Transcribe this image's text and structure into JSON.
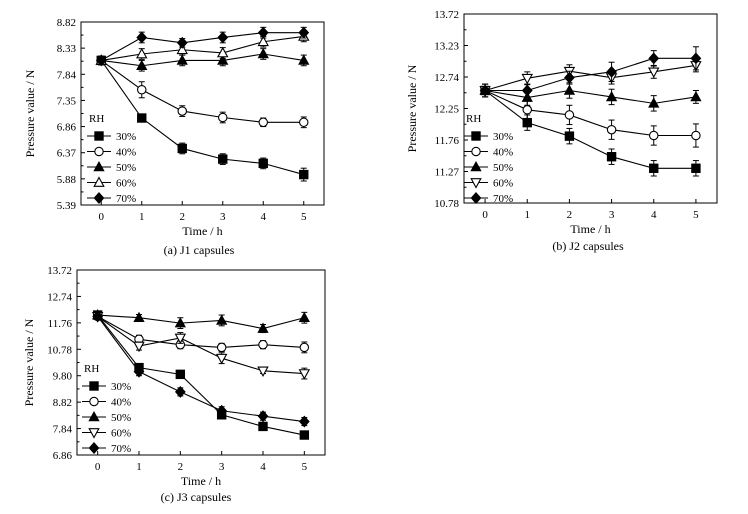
{
  "chart_data": [
    {
      "type": "line",
      "caption": "(a) J1 capsules",
      "xlabel": "Time / h",
      "ylabel": "Pressure value / N",
      "x": [
        0,
        1,
        2,
        3,
        4,
        5
      ],
      "xlim": [
        -0.5,
        5.5
      ],
      "ylim": [
        5.39,
        8.82
      ],
      "yticks": [
        "5.39",
        "5.88",
        "6.37",
        "6.86",
        "7.35",
        "7.84",
        "8.33",
        "8.82"
      ],
      "xticks": [
        "0",
        "1",
        "2",
        "3",
        "4",
        "5"
      ],
      "legend_title": "RH",
      "legend_position": "lower-left",
      "series": [
        {
          "name": "30%",
          "marker": "square-filled",
          "values": [
            8.1,
            7.02,
            6.45,
            6.25,
            6.17,
            5.96
          ],
          "err": [
            0.08,
            0.07,
            0.1,
            0.1,
            0.1,
            0.12
          ]
        },
        {
          "name": "40%",
          "marker": "circle-open",
          "values": [
            8.1,
            7.55,
            7.15,
            7.03,
            6.94,
            6.94
          ],
          "err": [
            0.08,
            0.15,
            0.1,
            0.1,
            0.08,
            0.1
          ]
        },
        {
          "name": "50%",
          "marker": "triangle-up-filled",
          "values": [
            8.1,
            8.0,
            8.1,
            8.1,
            8.22,
            8.1
          ],
          "err": [
            0.08,
            0.1,
            0.1,
            0.1,
            0.1,
            0.1
          ]
        },
        {
          "name": "60%",
          "marker": "triangle-up-open",
          "values": [
            8.1,
            8.22,
            8.3,
            8.24,
            8.45,
            8.55
          ],
          "err": [
            0.08,
            0.1,
            0.1,
            0.1,
            0.1,
            0.1
          ]
        },
        {
          "name": "70%",
          "marker": "diamond-filled",
          "values": [
            8.1,
            8.53,
            8.43,
            8.53,
            8.62,
            8.62
          ],
          "err": [
            0.08,
            0.1,
            0.08,
            0.1,
            0.1,
            0.1
          ]
        }
      ]
    },
    {
      "type": "line",
      "caption": "(b) J2 capsules",
      "xlabel": "Time / h",
      "ylabel": "Pressure value / N",
      "x": [
        0,
        1,
        2,
        3,
        4,
        5
      ],
      "xlim": [
        -0.5,
        5.5
      ],
      "ylim": [
        10.78,
        13.72
      ],
      "yticks": [
        "10.78",
        "11.27",
        "11.76",
        "12.25",
        "12.74",
        "13.23",
        "13.72"
      ],
      "xticks": [
        "0",
        "1",
        "2",
        "3",
        "4",
        "5"
      ],
      "legend_title": "RH",
      "legend_position": "lower-left",
      "series": [
        {
          "name": "30%",
          "marker": "square-filled",
          "values": [
            12.53,
            12.03,
            11.82,
            11.5,
            11.32,
            11.32
          ],
          "err": [
            0.1,
            0.12,
            0.12,
            0.12,
            0.12,
            0.12
          ]
        },
        {
          "name": "40%",
          "marker": "circle-open",
          "values": [
            12.53,
            12.23,
            12.15,
            11.92,
            11.83,
            11.83
          ],
          "err": [
            0.1,
            0.15,
            0.15,
            0.15,
            0.15,
            0.18
          ]
        },
        {
          "name": "50%",
          "marker": "triangle-up-filled",
          "values": [
            12.53,
            12.42,
            12.53,
            12.43,
            12.33,
            12.43
          ],
          "err": [
            0.1,
            0.12,
            0.12,
            0.12,
            0.12,
            0.1
          ]
        },
        {
          "name": "60%",
          "marker": "triangle-down-open",
          "values": [
            12.53,
            12.72,
            12.83,
            12.73,
            12.82,
            12.92
          ],
          "err": [
            0.1,
            0.1,
            0.1,
            0.1,
            0.1,
            0.1
          ]
        },
        {
          "name": "70%",
          "marker": "diamond-filled",
          "values": [
            12.53,
            12.53,
            12.73,
            12.82,
            13.03,
            13.03
          ],
          "err": [
            0.1,
            0.1,
            0.1,
            0.15,
            0.12,
            0.18
          ]
        }
      ]
    },
    {
      "type": "line",
      "caption": "(c) J3 capsules",
      "xlabel": "Time / h",
      "ylabel": "Pressure value / N",
      "x": [
        0,
        1,
        2,
        3,
        4,
        5
      ],
      "xlim": [
        -0.5,
        5.5
      ],
      "ylim": [
        6.86,
        13.72
      ],
      "yticks": [
        "6.86",
        "7.84",
        "8.82",
        "9.80",
        "10.78",
        "11.76",
        "12.74",
        "13.72"
      ],
      "xticks": [
        "0",
        "1",
        "2",
        "3",
        "4",
        "5"
      ],
      "legend_title": "RH",
      "legend_position": "lower-left",
      "series": [
        {
          "name": "30%",
          "marker": "square-filled",
          "values": [
            12.05,
            10.1,
            9.85,
            8.35,
            7.92,
            7.6
          ],
          "err": [
            0.12,
            0.12,
            0.15,
            0.15,
            0.1,
            0.12
          ]
        },
        {
          "name": "40%",
          "marker": "circle-open",
          "values": [
            12.0,
            11.15,
            10.95,
            10.85,
            10.95,
            10.85
          ],
          "err": [
            0.12,
            0.15,
            0.15,
            0.15,
            0.15,
            0.2
          ]
        },
        {
          "name": "50%",
          "marker": "triangle-up-filled",
          "values": [
            12.05,
            11.95,
            11.75,
            11.85,
            11.55,
            11.95
          ],
          "err": [
            0.12,
            0.12,
            0.2,
            0.2,
            0.15,
            0.2
          ]
        },
        {
          "name": "60%",
          "marker": "triangle-down-open",
          "values": [
            12.0,
            10.9,
            11.2,
            10.45,
            9.98,
            9.88
          ],
          "err": [
            0.12,
            0.15,
            0.2,
            0.2,
            0.1,
            0.2
          ]
        },
        {
          "name": "70%",
          "marker": "diamond-filled",
          "values": [
            12.0,
            9.95,
            9.2,
            8.5,
            8.3,
            8.1
          ],
          "err": [
            0.12,
            0.15,
            0.15,
            0.15,
            0.15,
            0.15
          ]
        }
      ]
    }
  ]
}
